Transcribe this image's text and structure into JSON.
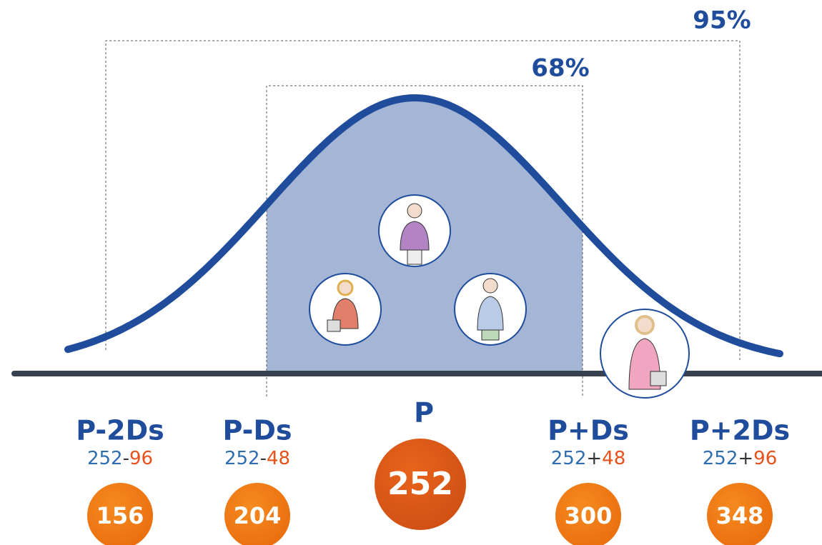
{
  "percent_95": "95%",
  "percent_68": "68%",
  "center": {
    "label": "P",
    "value": 252
  },
  "markers": [
    {
      "label": "P-2Ds",
      "base": 252,
      "operator": "-",
      "delta": 96,
      "result": 156
    },
    {
      "label": "P-Ds",
      "base": 252,
      "operator": "-",
      "delta": 48,
      "result": 204
    },
    {
      "label": "P+Ds",
      "base": 252,
      "operator": "+",
      "delta": 48,
      "result": 300
    },
    {
      "label": "P+2Ds",
      "base": 252,
      "operator": "+",
      "delta": 96,
      "result": 348
    }
  ]
}
